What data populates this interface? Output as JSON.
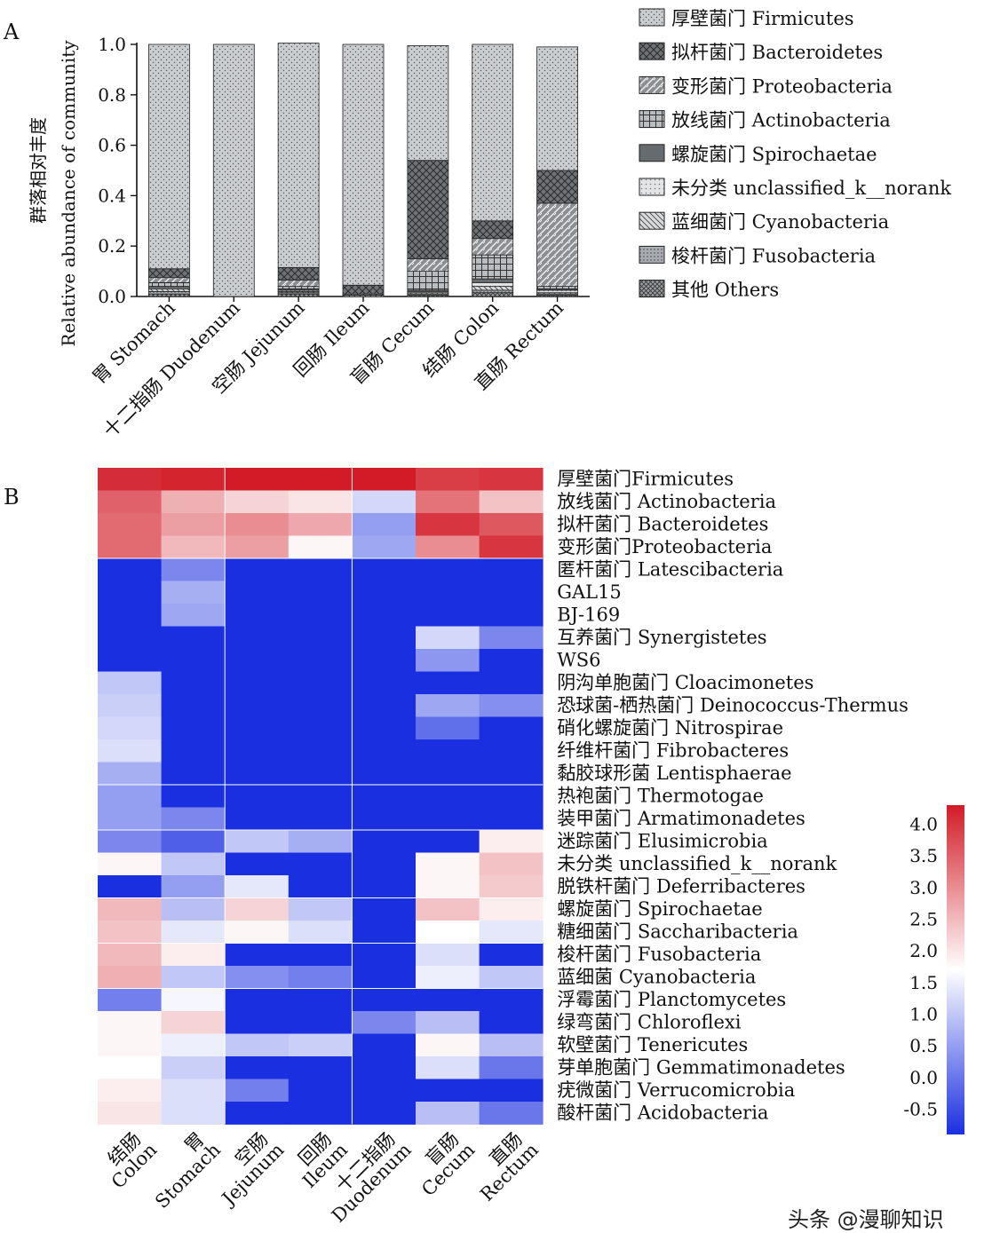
{
  "panels": {
    "a": "A",
    "b": "B"
  },
  "watermark": "头条 @漫聊知识",
  "chart_data": [
    {
      "type": "bar",
      "stacked": true,
      "ylabel_cn": "群落相对丰度",
      "ylabel_en": "Relative abundance of community",
      "ylim": [
        0,
        1.0
      ],
      "yticks": [
        "0.0",
        "0.2",
        "0.4",
        "0.6",
        "0.8",
        "1.0"
      ],
      "categories": [
        "胃 Stomach",
        "十二指肠 Duodenum",
        "空肠 Jejunum",
        "回肠 Ileum",
        "盲肠 Cecum",
        "结肠 Colon",
        "直肠 Rectum"
      ],
      "legend_position": "top-right",
      "series": [
        {
          "name": "厚壁菌门 Firmicutes",
          "key": "firmicutes",
          "values": [
            0.89,
            1.0,
            0.89,
            0.955,
            0.455,
            0.7,
            0.49
          ]
        },
        {
          "name": "拟杆菌门 Bacteroidetes",
          "key": "bacteroidetes",
          "values": [
            0.035,
            0.0,
            0.05,
            0.035,
            0.39,
            0.07,
            0.13
          ]
        },
        {
          "name": "变形菌门 Proteobacteria",
          "key": "proteobacteria",
          "values": [
            0.02,
            0.0,
            0.025,
            0.0,
            0.05,
            0.065,
            0.33
          ]
        },
        {
          "name": "放线菌门 Actinobacteria",
          "key": "actinobacteria",
          "values": [
            0.015,
            0.0,
            0.01,
            0.005,
            0.075,
            0.095,
            0.01
          ]
        },
        {
          "name": "螺旋菌门 Spirochaetae",
          "key": "spirochaetae",
          "values": [
            0.005,
            0.0,
            0.005,
            0.0,
            0.005,
            0.015,
            0.005
          ]
        },
        {
          "name": "未分类 unclassified_k__norank",
          "key": "unclassified",
          "values": [
            0.005,
            0.0,
            0.005,
            0.0,
            0.005,
            0.015,
            0.01
          ]
        },
        {
          "name": "蓝细菌门 Cyanobacteria",
          "key": "cyanobacteria",
          "values": [
            0.01,
            0.0,
            0.005,
            0.005,
            0.005,
            0.015,
            0.005
          ]
        },
        {
          "name": "梭杆菌门 Fusobacteria",
          "key": "fusobacteria",
          "values": [
            0.01,
            0.0,
            0.005,
            0.0,
            0.005,
            0.01,
            0.005
          ]
        },
        {
          "name": "其他 Others",
          "key": "others",
          "values": [
            0.01,
            0.0,
            0.01,
            0.0,
            0.005,
            0.015,
            0.005
          ]
        }
      ]
    },
    {
      "type": "heatmap",
      "columns": [
        {
          "cn": "结肠",
          "en": "Colon"
        },
        {
          "cn": "胃",
          "en": "Stomach"
        },
        {
          "cn": "空肠",
          "en": "Jejunum"
        },
        {
          "cn": "回肠",
          "en": "Ileum"
        },
        {
          "cn": "十二指肠",
          "en": "Duodenum"
        },
        {
          "cn": "盲肠",
          "en": "Cecum"
        },
        {
          "cn": "直肠",
          "en": "Rectum"
        }
      ],
      "rows": [
        "厚壁菌门Firmicutes",
        "放线菌门 Actinobacteria",
        "拟杆菌门 Bacteroidetes",
        "变形菌门Proteobacteria",
        "匿杆菌门 Latescibacteria",
        "GAL15",
        "BJ-169",
        "互养菌门 Synergistetes",
        "WS6",
        "阴沟单胞菌门 Cloacimonetes",
        "恐球菌-栖热菌门 Deinococcus-Thermus",
        "硝化螺旋菌门 Nitrospirae",
        "纤维杆菌门 Fibrobacteres",
        "黏胶球形菌 Lentisphaerae",
        "热袍菌门 Thermotogae",
        "装甲菌门 Armatimonadetes",
        "迷踪菌门 Elusimicrobia",
        "未分类 unclassified_k__norank",
        "脱铁杆菌门 Deferribacteres",
        "螺旋菌门 Spirochaetae",
        "糖细菌门 Saccharibacteria",
        "梭杆菌门 Fusobacteria",
        "蓝细菌 Cyanobacteria",
        "浮霉菌门 Planctomycetes",
        "绿弯菌门 Chloroflexi",
        "软壁菌门 Tenericutes",
        "芽单胞菌门 Gemmatimonadetes",
        "疣微菌门 Verrucomicrobia",
        "酸杆菌门 Acidobacteria"
      ],
      "values": [
        [
          4.1,
          4.2,
          4.3,
          4.3,
          4.3,
          3.9,
          4.0
        ],
        [
          3.5,
          2.6,
          2.2,
          2.0,
          1.2,
          3.3,
          2.4
        ],
        [
          3.4,
          2.8,
          3.0,
          2.7,
          0.5,
          4.0,
          3.6
        ],
        [
          3.4,
          2.5,
          2.8,
          1.8,
          0.6,
          3.0,
          4.0
        ],
        [
          -0.9,
          0.2,
          -0.9,
          -0.9,
          -0.9,
          -0.9,
          -0.9
        ],
        [
          -0.9,
          0.7,
          -0.9,
          -0.9,
          -0.9,
          -0.9,
          -0.9
        ],
        [
          -0.9,
          0.6,
          -0.9,
          -0.9,
          -0.9,
          -0.9,
          -0.9
        ],
        [
          -0.9,
          -0.9,
          -0.9,
          -0.9,
          -0.9,
          1.2,
          0.2
        ],
        [
          -0.9,
          -0.9,
          -0.9,
          -0.9,
          -0.9,
          0.4,
          -0.9
        ],
        [
          1.0,
          -0.9,
          -0.9,
          -0.9,
          -0.9,
          -0.9,
          -0.9
        ],
        [
          1.1,
          -0.9,
          -0.9,
          -0.9,
          -0.9,
          0.6,
          0.3
        ],
        [
          1.2,
          -0.9,
          -0.9,
          -0.9,
          -0.9,
          -0.1,
          -0.9
        ],
        [
          1.3,
          -0.9,
          -0.9,
          -0.9,
          -0.9,
          -0.9,
          -0.9
        ],
        [
          0.7,
          -0.9,
          -0.9,
          -0.9,
          -0.9,
          -0.9,
          -0.9
        ],
        [
          0.5,
          -0.9,
          -0.9,
          -0.9,
          -0.9,
          -0.9,
          -0.9
        ],
        [
          0.5,
          0.2,
          -0.9,
          -0.9,
          -0.9,
          -0.9,
          -0.9
        ],
        [
          0.2,
          -0.3,
          1.0,
          0.7,
          -0.9,
          -0.9,
          1.9
        ],
        [
          1.8,
          1.0,
          -0.9,
          -0.9,
          -0.9,
          1.8,
          2.4
        ],
        [
          -0.9,
          0.5,
          1.4,
          -0.9,
          -0.9,
          1.8,
          2.3
        ],
        [
          2.5,
          0.9,
          2.2,
          1.0,
          -0.9,
          2.4,
          1.9
        ],
        [
          2.4,
          1.4,
          1.8,
          1.3,
          -0.9,
          1.7,
          1.4
        ],
        [
          2.5,
          1.9,
          -0.9,
          -0.9,
          -0.9,
          1.3,
          -0.9
        ],
        [
          2.6,
          1.0,
          0.3,
          0.1,
          -0.9,
          1.5,
          1.0
        ],
        [
          0.1,
          1.6,
          -0.9,
          -0.9,
          -0.9,
          -0.9,
          -0.9
        ],
        [
          1.8,
          2.2,
          -0.9,
          -0.9,
          0.2,
          0.9,
          -0.9
        ],
        [
          1.8,
          1.5,
          1.0,
          1.1,
          -0.9,
          1.8,
          0.9
        ],
        [
          1.7,
          1.1,
          -0.9,
          -0.9,
          -0.9,
          1.3,
          0.0
        ],
        [
          1.9,
          1.3,
          0.1,
          -0.9,
          -0.9,
          -0.9,
          -0.9
        ],
        [
          2.0,
          1.3,
          -0.9,
          -0.9,
          -0.9,
          0.9,
          0.0
        ]
      ],
      "color_scale": {
        "min": -0.9,
        "max": 4.3,
        "low": "#1a2fe0",
        "mid": "#ffffff",
        "high": "#d21b26",
        "mid_value": 1.7
      },
      "colorbar_ticks": [
        "4.0",
        "3.5",
        "3.0",
        "2.5",
        "2.0",
        "1.5",
        "1.0",
        "0.5",
        "0.0",
        "-0.5"
      ]
    }
  ]
}
